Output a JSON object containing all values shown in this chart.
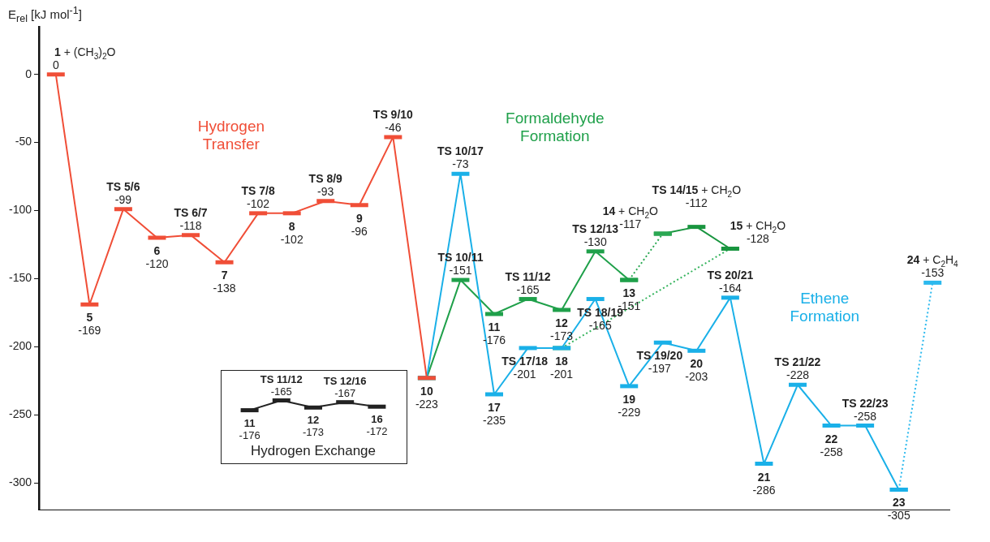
{
  "chart_data": [
    {
      "type": "line",
      "ylabel": "E$_{rel}$ [kJ mol$^{-1}$]",
      "categories": [
        null,
        null,
        null,
        null,
        null,
        null,
        null,
        null,
        null,
        null,
        null,
        null,
        null,
        null,
        null,
        null,
        null,
        null,
        null,
        null,
        null,
        null,
        null,
        null,
        null,
        null,
        null
      ],
      "ylim": [
        -320,
        35
      ],
      "yticks": [
        0,
        -50,
        -100,
        -150,
        -200,
        -250,
        -300
      ],
      "tick_labels": "y",
      "line_style": "solid",
      "series": [
        {
          "name": "Hydrogen Transfer",
          "color": "#f04e37",
          "values": [
            0,
            -169,
            -99,
            -120,
            -118,
            -138,
            -102,
            -102,
            -93,
            -96,
            -46,
            -223,
            null,
            null,
            null,
            null,
            null,
            null,
            null,
            null,
            null,
            null,
            null,
            null,
            null,
            null,
            null
          ],
          "value_labels": [
            "0",
            "-169",
            "-99",
            "-120",
            "-118",
            "-138",
            "-102",
            "-102",
            "-93",
            "-96",
            "-46",
            "-223",
            null,
            null,
            null,
            null,
            null,
            null,
            null,
            null,
            null,
            null,
            null,
            null,
            null,
            null,
            null
          ]
        },
        {
          "name": "Ethene Formation",
          "color": "#1ab0e8",
          "values": [
            null,
            null,
            null,
            null,
            null,
            null,
            null,
            null,
            null,
            null,
            null,
            -223,
            -73,
            -235,
            -201,
            -201,
            -165,
            -229,
            -197,
            -203,
            -164,
            -286,
            -228,
            -258,
            -258,
            -305,
            null
          ],
          "value_labels": [
            null,
            null,
            null,
            null,
            null,
            null,
            null,
            null,
            null,
            null,
            null,
            null,
            "-73",
            "-235",
            "-201",
            "-201",
            "-165",
            "-229",
            "-197",
            "-203",
            "-164",
            "-286",
            "-228",
            "-258",
            "-258",
            "-305",
            null
          ]
        },
        {
          "color": "#2cb9ee",
          "line_style": "dotted",
          "values": [
            null,
            null,
            null,
            null,
            null,
            null,
            null,
            null,
            null,
            null,
            null,
            null,
            null,
            null,
            null,
            null,
            null,
            null,
            null,
            null,
            null,
            null,
            null,
            null,
            null,
            -305,
            -153
          ],
          "value_labels": [
            null,
            null,
            null,
            null,
            null,
            null,
            null,
            null,
            null,
            null,
            null,
            null,
            null,
            null,
            null,
            null,
            null,
            null,
            null,
            null,
            null,
            null,
            null,
            null,
            null,
            null,
            "-153"
          ]
        },
        {
          "name": "Formaldehyde Formation",
          "color": "#1fa04a",
          "values": [
            null,
            null,
            null,
            null,
            null,
            null,
            null,
            null,
            null,
            null,
            null,
            -223,
            -151,
            -176,
            -165,
            -173,
            -130,
            -151,
            null,
            null,
            null,
            null,
            null,
            null,
            null,
            null,
            null
          ],
          "value_labels": [
            null,
            null,
            null,
            null,
            null,
            null,
            null,
            null,
            null,
            null,
            null,
            null,
            "-151",
            "-176",
            "-165",
            "-173",
            "-130",
            "-151",
            null,
            null,
            null,
            null,
            null,
            null,
            null,
            null,
            null
          ]
        },
        {
          "color": "#2aa852",
          "line_style": "dotted",
          "values": [
            null,
            null,
            null,
            null,
            null,
            null,
            null,
            null,
            null,
            null,
            null,
            null,
            null,
            null,
            null,
            null,
            null,
            -151,
            -117,
            null,
            null,
            null,
            null,
            null,
            null,
            null,
            null
          ],
          "value_labels": [
            null,
            null,
            null,
            null,
            null,
            null,
            null,
            null,
            null,
            null,
            null,
            null,
            null,
            null,
            null,
            null,
            null,
            null,
            "-117",
            null,
            null,
            null,
            null,
            null,
            null,
            null,
            null
          ]
        },
        {
          "color": "#19953f",
          "values": [
            null,
            null,
            null,
            null,
            null,
            null,
            null,
            null,
            null,
            null,
            null,
            null,
            null,
            null,
            null,
            null,
            null,
            null,
            -117,
            -112,
            -128,
            null,
            null,
            null,
            null,
            null,
            null
          ],
          "value_labels": [
            null,
            null,
            null,
            null,
            null,
            null,
            null,
            null,
            null,
            null,
            null,
            null,
            null,
            null,
            null,
            null,
            null,
            null,
            null,
            "-112",
            "-128",
            null,
            null,
            null,
            null,
            null,
            null
          ]
        },
        {
          "color": "#36b45e",
          "line_style": "dotted",
          "values": [
            null,
            null,
            null,
            null,
            null,
            null,
            null,
            null,
            null,
            null,
            null,
            null,
            null,
            null,
            null,
            -201,
            null,
            null,
            null,
            null,
            -128,
            null,
            null,
            null,
            null,
            null,
            null
          ]
        }
      ],
      "annotations": [
        "1 + (CH$_{3}$)$_{2}$O",
        "5",
        "TS 5/6",
        "6",
        "TS 6/7",
        "7",
        "TS 7/8",
        "8",
        "TS 8/9",
        "9",
        "TS 9/10",
        "10",
        "TS 10/17",
        "17",
        "TS 17/18",
        "18",
        "TS 18/19",
        "19",
        "TS 19/20",
        "20",
        "TS 20/21",
        "21",
        "TS 21/22",
        "22",
        "TS 22/23",
        "23",
        "24 + C$_{2}$H$_{4}$",
        "TS 10/11",
        "11",
        "TS 11/12",
        "12",
        "TS 12/13",
        "13",
        "14 + CH$_{2}$O",
        "TS 14/15 + CH$_{2}$O",
        "15 + CH$_{2}$O"
      ]
    },
    {
      "type": "line",
      "title": "Hydrogen Exchange",
      "categories": [
        null,
        null,
        null,
        null,
        null
      ],
      "tick_labels": false,
      "data_labels": true,
      "series": [
        {
          "color": "#222222",
          "values": [
            -176,
            -165,
            -173,
            -167,
            -172
          ]
        }
      ],
      "annotations": [
        "11",
        "TS 11/12",
        "12",
        "TS 12/16",
        "16"
      ]
    }
  ]
}
